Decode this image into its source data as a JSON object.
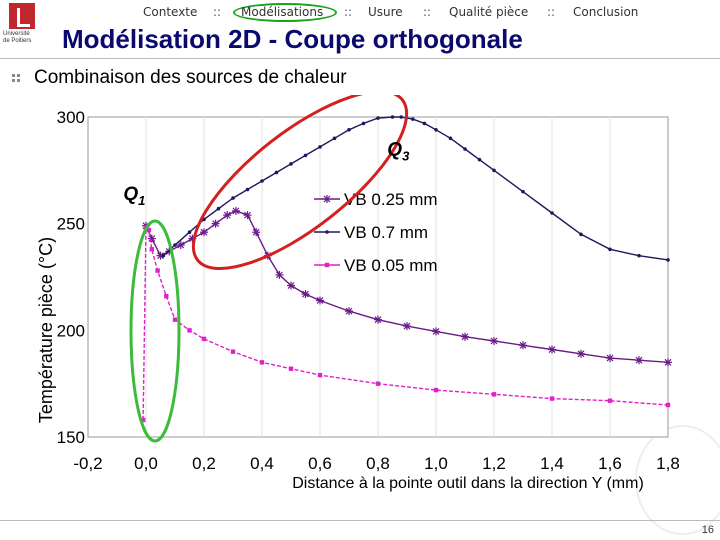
{
  "logo": {
    "line1": "Université",
    "line2": "de Poitiers"
  },
  "nav": {
    "items": [
      "Contexte",
      "Modélisations",
      "Usure",
      "Qualité pièce",
      "Conclusion"
    ],
    "separator": "::",
    "active": "Modélisations",
    "active_ring_color": "#19a319"
  },
  "title": "Modélisation 2D - Coupe orthogonale",
  "subtitle": "Combinaison des sources de chaleur",
  "slide_number": "16",
  "colors": {
    "title": "#0a0a6e",
    "ellipse_q3": "#d32020",
    "ellipse_q1": "#3cbb3c"
  },
  "chart_data": {
    "type": "line",
    "xlabel": "Distance à la pointe outil dans la direction Y (mm)",
    "ylabel": "Température pièce (°C)",
    "xlim": [
      -0.2,
      1.8
    ],
    "ylim": [
      150,
      300
    ],
    "xticks": [
      "-0,2",
      "0,0",
      "0,2",
      "0,4",
      "0,6",
      "0,8",
      "1,0",
      "1,2",
      "1,4",
      "1,6",
      "1,8"
    ],
    "yticks": [
      "150",
      "200",
      "250",
      "300"
    ],
    "grid": "vertical",
    "legend_position": "top-center",
    "annotations": [
      {
        "label": "Q",
        "sub": "1",
        "x": -0.04,
        "y": 261
      },
      {
        "label": "Q",
        "sub": "3",
        "x": 0.87,
        "y": 282
      }
    ],
    "series": [
      {
        "name": "VB 0.25 mm",
        "color": "#6a1b8a",
        "marker": "star",
        "x": [
          0.0,
          0.02,
          0.05,
          0.08,
          0.12,
          0.16,
          0.2,
          0.24,
          0.28,
          0.31,
          0.35,
          0.38,
          0.42,
          0.46,
          0.5,
          0.55,
          0.6,
          0.7,
          0.8,
          0.9,
          1.0,
          1.1,
          1.2,
          1.3,
          1.4,
          1.5,
          1.6,
          1.7,
          1.8
        ],
        "y": [
          249,
          243,
          235,
          237,
          240,
          243,
          246,
          250,
          254,
          256,
          254,
          246,
          235,
          226,
          221,
          217,
          214,
          209,
          205,
          202,
          199.5,
          197,
          195,
          193,
          191,
          189,
          187,
          186,
          185
        ]
      },
      {
        "name": "VB 0.7 mm",
        "color": "#1a1a5e",
        "marker": "dot",
        "x": [
          0.06,
          0.1,
          0.15,
          0.2,
          0.25,
          0.3,
          0.35,
          0.4,
          0.45,
          0.5,
          0.55,
          0.6,
          0.65,
          0.7,
          0.75,
          0.8,
          0.85,
          0.88,
          0.92,
          0.96,
          1.0,
          1.05,
          1.1,
          1.15,
          1.2,
          1.3,
          1.4,
          1.5,
          1.6,
          1.7,
          1.8
        ],
        "y": [
          235,
          240,
          246,
          252,
          257,
          262,
          266,
          270,
          274,
          278,
          282,
          286,
          290,
          294,
          297,
          299.5,
          300,
          300,
          299,
          297,
          294,
          290,
          285,
          280,
          275,
          265,
          255,
          245,
          238,
          235,
          233
        ]
      },
      {
        "name": "VB 0.05 mm",
        "color": "#e020c8",
        "marker": "square",
        "x": [
          -0.01,
          0.0,
          0.01,
          0.02,
          0.04,
          0.07,
          0.1,
          0.15,
          0.2,
          0.3,
          0.4,
          0.5,
          0.6,
          0.8,
          1.0,
          1.2,
          1.4,
          1.6,
          1.8
        ],
        "y": [
          158,
          248,
          247,
          238,
          228,
          216,
          205,
          200,
          196,
          190,
          185,
          182,
          179,
          175,
          172,
          170,
          168,
          167,
          165
        ]
      }
    ]
  }
}
